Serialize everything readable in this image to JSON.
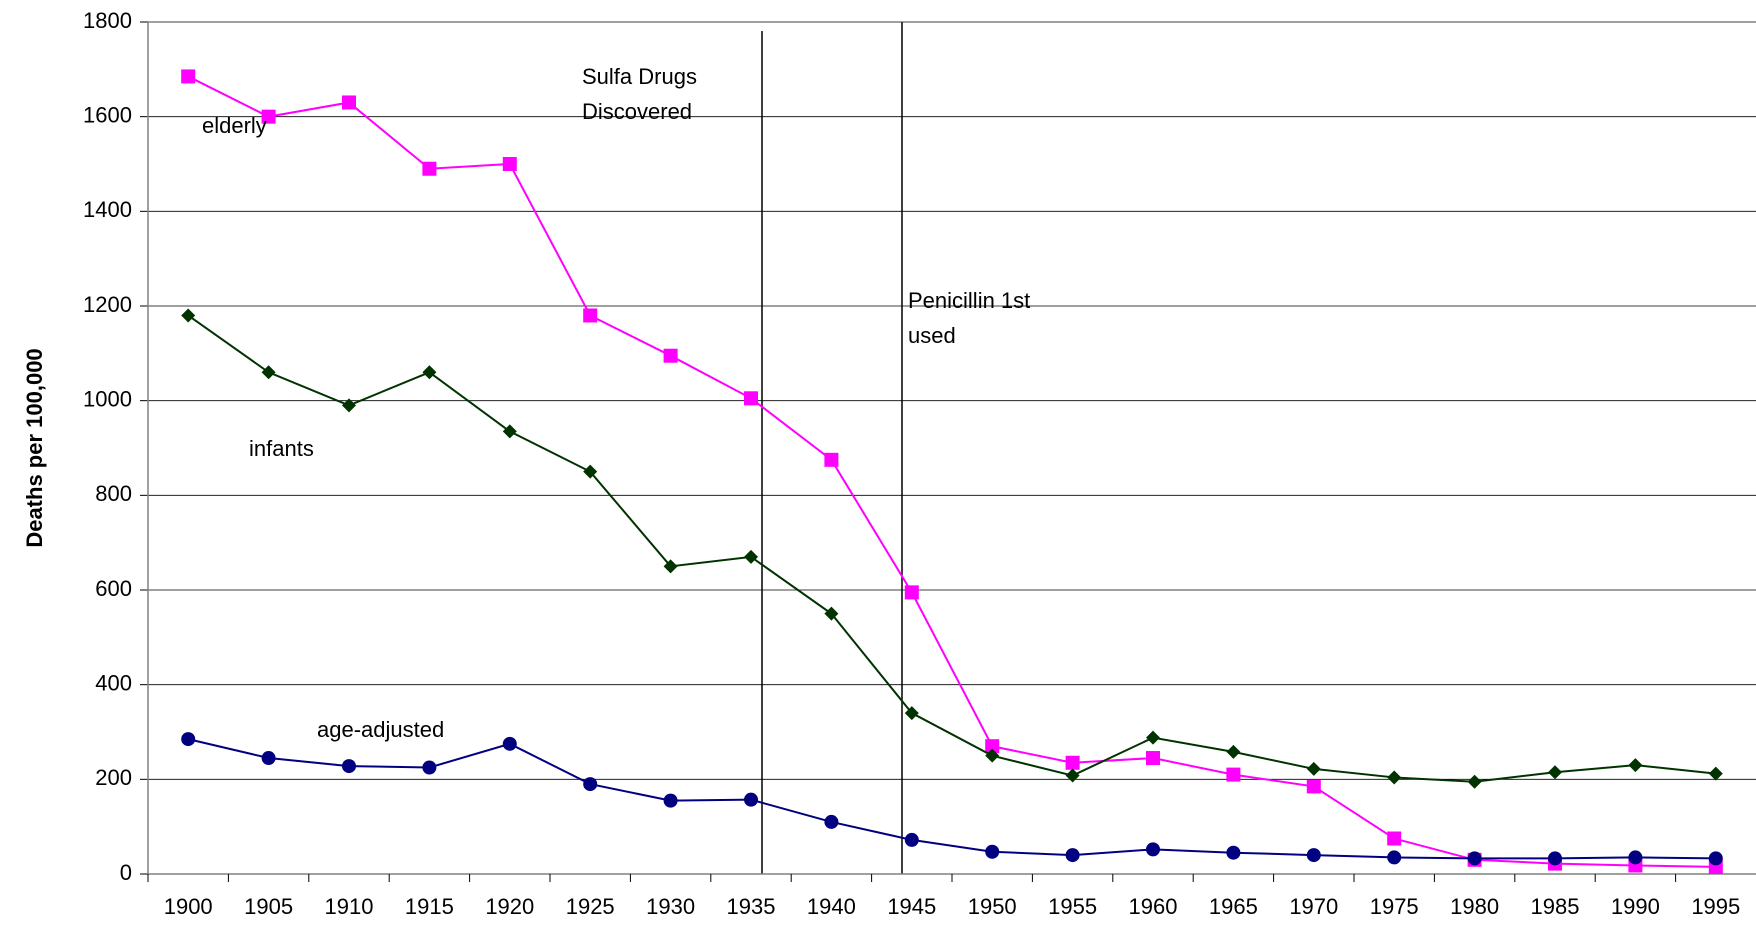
{
  "chart_data": {
    "type": "line",
    "y_label": "Deaths per 100,000",
    "categories": [
      "1900",
      "1905",
      "1910",
      "1915",
      "1920",
      "1925",
      "1930",
      "1935",
      "1940",
      "1945",
      "1950",
      "1955",
      "1960",
      "1965",
      "1970",
      "1975",
      "1980",
      "1985",
      "1990",
      "1995"
    ],
    "series": [
      {
        "name": "elderly",
        "color": "#ff00ff",
        "marker": "square",
        "values": [
          1685,
          1600,
          1630,
          1490,
          1500,
          1180,
          1095,
          1005,
          875,
          595,
          270,
          235,
          245,
          210,
          185,
          75,
          30,
          22,
          18,
          15
        ]
      },
      {
        "name": "infants",
        "color": "#003300",
        "marker": "diamond",
        "values": [
          1180,
          1060,
          990,
          1060,
          935,
          850,
          650,
          670,
          550,
          340,
          250,
          208,
          288,
          258,
          222,
          204,
          195,
          215,
          230,
          212
        ]
      },
      {
        "name": "age-adjusted",
        "color": "#000080",
        "marker": "circle",
        "values": [
          285,
          245,
          228,
          225,
          275,
          190,
          155,
          157,
          110,
          72,
          47,
          40,
          52,
          45,
          40,
          35,
          33,
          33,
          35,
          33
        ]
      }
    ],
    "annotations": [
      [
        "Sulfa Drugs",
        "Discovered"
      ],
      [
        "Penicillin 1st",
        "used"
      ]
    ],
    "ylim": [
      0,
      1800
    ],
    "yticks": [
      0,
      200,
      400,
      600,
      800,
      1000,
      1200,
      1400,
      1600,
      1800
    ],
    "grid": true
  }
}
